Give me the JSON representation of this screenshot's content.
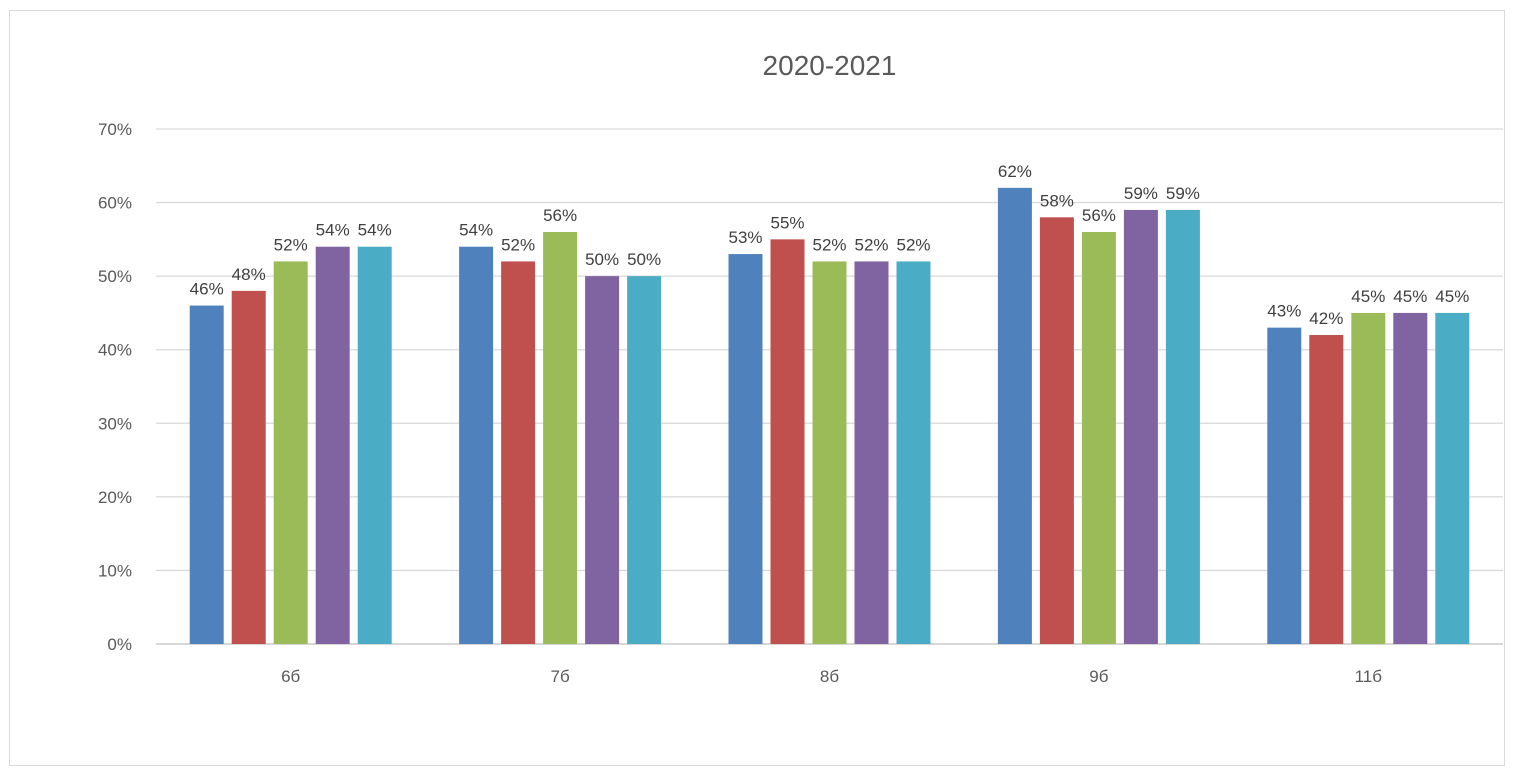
{
  "chart_data": {
    "type": "bar",
    "title": "2020-2021",
    "xlabel": "",
    "ylabel": "",
    "categories": [
      "6б",
      "7б",
      "8б",
      "9б",
      "11б"
    ],
    "ylim": [
      0,
      0.7
    ],
    "yticks": [
      0,
      0.1,
      0.2,
      0.3,
      0.4,
      0.5,
      0.6,
      0.7
    ],
    "ytick_labels": [
      "0%",
      "10%",
      "20%",
      "30%",
      "40%",
      "50%",
      "60%",
      "70%"
    ],
    "grid": true,
    "legend": "none",
    "series": [
      {
        "color": "#4f81bd",
        "values": [
          0.46,
          0.54,
          0.53,
          0.62,
          0.43
        ],
        "labels": [
          "46%",
          "54%",
          "53%",
          "62%",
          "43%"
        ]
      },
      {
        "color": "#c0504d",
        "values": [
          0.48,
          0.52,
          0.55,
          0.58,
          0.42
        ],
        "labels": [
          "48%",
          "52%",
          "55%",
          "58%",
          "42%"
        ]
      },
      {
        "color": "#9bbb59",
        "values": [
          0.52,
          0.56,
          0.52,
          0.56,
          0.45
        ],
        "labels": [
          "52%",
          "56%",
          "52%",
          "56%",
          "45%"
        ]
      },
      {
        "color": "#8064a2",
        "values": [
          0.54,
          0.5,
          0.52,
          0.59,
          0.45
        ],
        "labels": [
          "54%",
          "50%",
          "52%",
          "59%",
          "45%"
        ]
      },
      {
        "color": "#4bacc6",
        "values": [
          0.54,
          0.5,
          0.52,
          0.59,
          0.45
        ],
        "labels": [
          "54%",
          "50%",
          "52%",
          "59%",
          "45%"
        ]
      }
    ]
  }
}
